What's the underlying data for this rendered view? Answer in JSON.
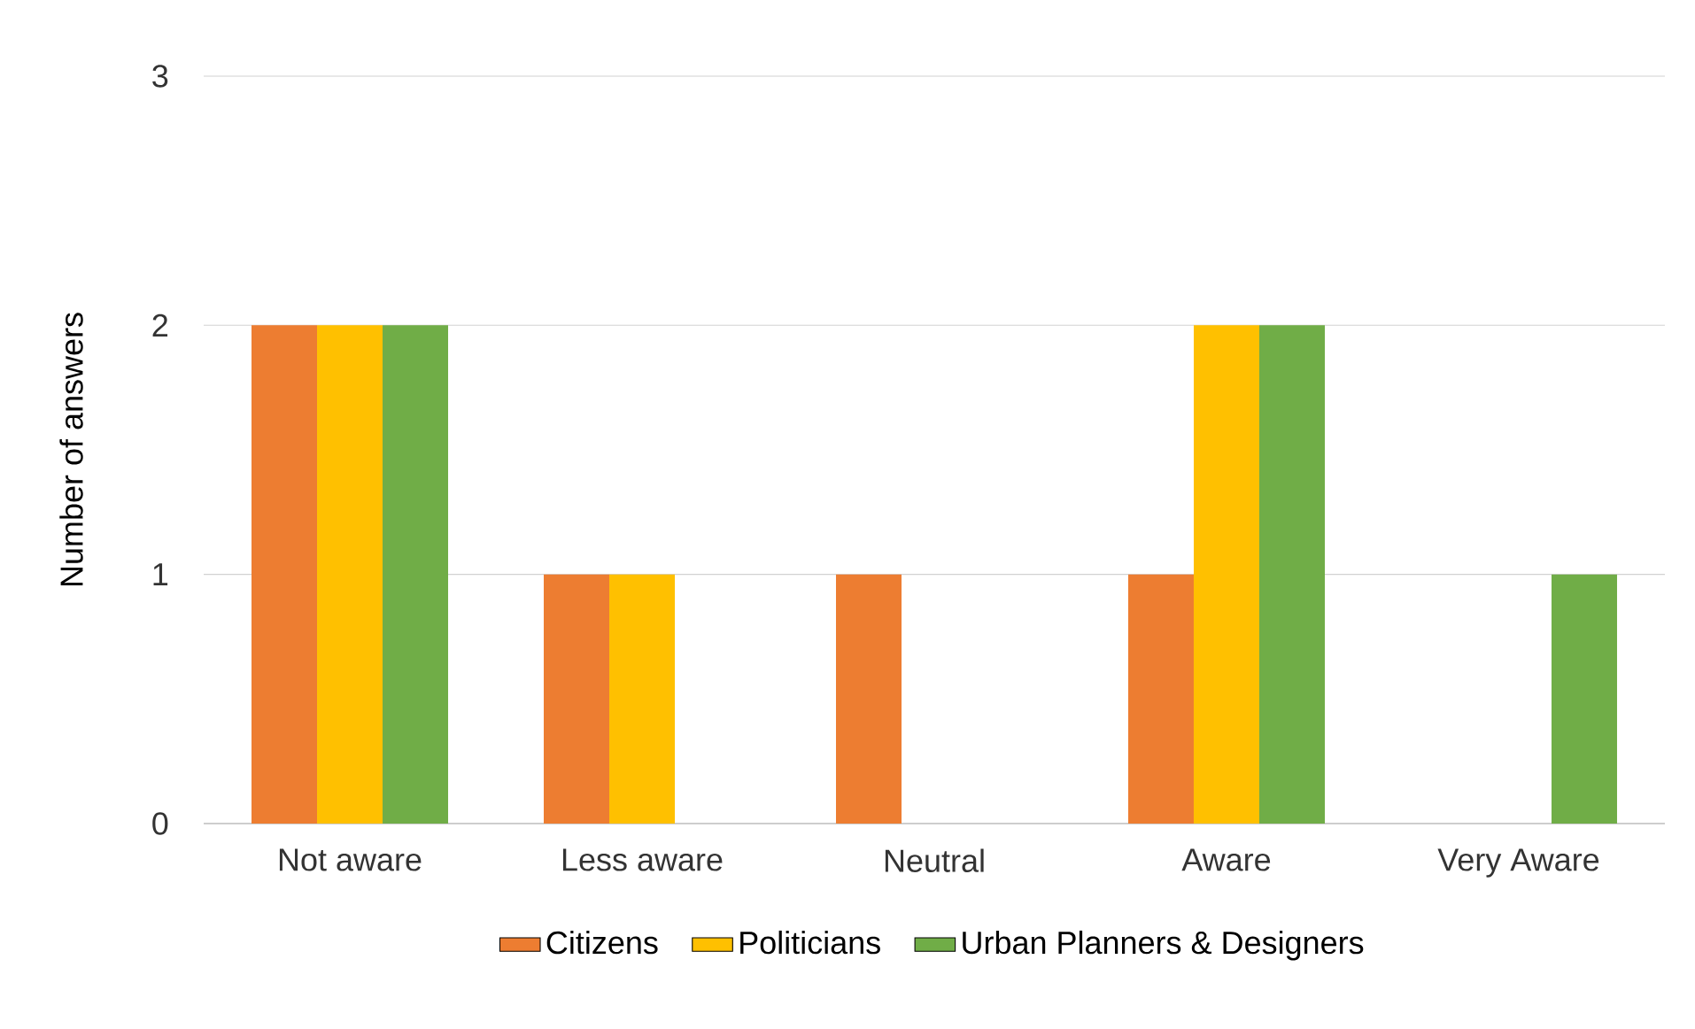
{
  "chart_data": {
    "type": "bar",
    "ylabel": "Number of answers",
    "categories": [
      "Not aware",
      "Less aware",
      "Neutral",
      "Aware",
      "Very Aware"
    ],
    "series": [
      {
        "name": "Citizens",
        "color": "#ed7d31",
        "values": [
          2,
          1,
          1,
          1,
          0
        ]
      },
      {
        "name": "Politicians",
        "color": "#ffc000",
        "values": [
          2,
          1,
          0,
          2,
          0
        ]
      },
      {
        "name": "Urban Planners & Designers",
        "color": "#70ad47",
        "values": [
          2,
          0,
          0,
          2,
          1
        ]
      }
    ],
    "ylim": [
      0,
      3
    ],
    "yticks": [
      0,
      1,
      2,
      3
    ],
    "grid": "y",
    "legend": "bottom"
  }
}
